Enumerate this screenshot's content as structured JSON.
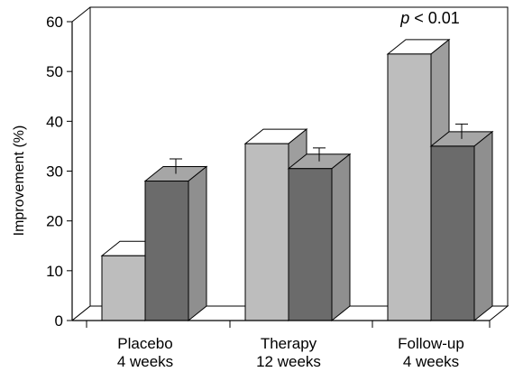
{
  "chart_data": {
    "type": "bar",
    "title": "",
    "xlabel": "",
    "ylabel": "Improvement (%)",
    "ylim": [
      0,
      60
    ],
    "yticks": [
      "0",
      "10",
      "20",
      "30",
      "40",
      "50",
      "60"
    ],
    "categories": [
      {
        "line1": "Placebo",
        "line2": "4 weeks"
      },
      {
        "line1": "Therapy",
        "line2": "12 weeks"
      },
      {
        "line1": "Follow-up",
        "line2": "4 weeks"
      }
    ],
    "series": [
      {
        "values": [
          13,
          35.5,
          53.5
        ],
        "error": [
          0,
          0,
          0
        ],
        "color": "#bdbdbd"
      },
      {
        "values": [
          28,
          30.5,
          35
        ],
        "error": [
          3,
          2.7,
          3
        ],
        "color": "#6b6b6b"
      }
    ],
    "annotation": {
      "italic": "p",
      "rest": " < 0.01"
    },
    "grid": false,
    "style": "3d"
  }
}
